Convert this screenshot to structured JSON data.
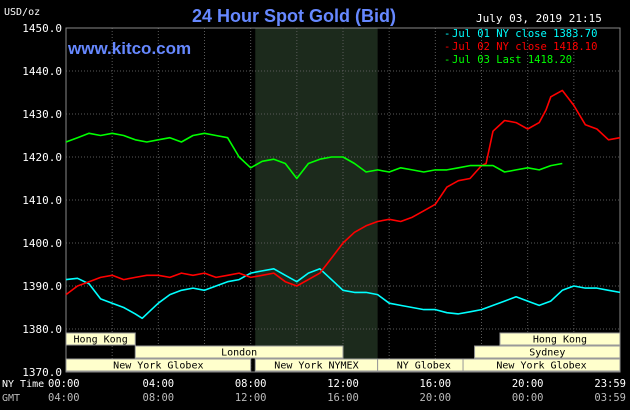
{
  "chart_data": {
    "type": "line",
    "title": "24 Hour Spot Gold (Bid)",
    "brand": "www.kitco.com",
    "timestamp": "July 03, 2019 21:15",
    "ylabel": "USD/oz",
    "ylim": [
      1370,
      1450
    ],
    "yticks": [
      "1450.0",
      "1440.0",
      "1430.0",
      "1420.0",
      "1410.0",
      "1400.0",
      "1390.0",
      "1380.0",
      "1370.0"
    ],
    "xlim": [
      0,
      24
    ],
    "grid": true,
    "legend_position": "top-right",
    "x_rows": [
      {
        "label": "NY Time",
        "ticks": [
          "00:00",
          "04:00",
          "08:00",
          "12:00",
          "16:00",
          "20:00",
          "23:59"
        ]
      },
      {
        "label": "GMT",
        "ticks": [
          "04:00",
          "08:00",
          "12:00",
          "16:00",
          "20:00",
          "00:00",
          "03:59"
        ]
      }
    ],
    "series": [
      {
        "name": "Jul 01 NY close 1383.70",
        "color": "#00ffff",
        "x": [
          0,
          0.5,
          1,
          1.5,
          2,
          2.5,
          3,
          3.3,
          3.6,
          4,
          4.5,
          5,
          5.5,
          6,
          6.5,
          7,
          7.5,
          8,
          8.5,
          9,
          9.5,
          10,
          10.5,
          11,
          11.5,
          12,
          12.5,
          13,
          13.5,
          14,
          14.5,
          15,
          15.5,
          16,
          16.5,
          17,
          17.5,
          18,
          18.5,
          19,
          19.5,
          20,
          20.5,
          21,
          21.5,
          22,
          22.5,
          23,
          23.5,
          24
        ],
        "y": [
          1391.5,
          1391.8,
          1390.5,
          1387.0,
          1386.0,
          1385.0,
          1383.5,
          1382.5,
          1384.0,
          1386.0,
          1388.0,
          1389.0,
          1389.5,
          1389.0,
          1390.0,
          1391.0,
          1391.5,
          1393.0,
          1393.5,
          1394.0,
          1392.5,
          1391.0,
          1393.0,
          1394.0,
          1391.5,
          1389.0,
          1388.5,
          1388.5,
          1388.0,
          1386.0,
          1385.5,
          1385.0,
          1384.5,
          1384.5,
          1383.8,
          1383.5,
          1384.0,
          1384.5,
          1385.5,
          1386.5,
          1387.5,
          1386.5,
          1385.5,
          1386.5,
          1389.0,
          1390.0,
          1389.5,
          1389.5,
          1389.0,
          1388.5
        ]
      },
      {
        "name": "Jul 02 NY close 1418.10",
        "color": "#ff0000",
        "x": [
          0,
          0.5,
          1,
          1.5,
          2,
          2.5,
          3,
          3.5,
          4,
          4.5,
          5,
          5.5,
          6,
          6.5,
          7,
          7.5,
          8,
          8.5,
          9,
          9.5,
          10,
          10.5,
          11,
          11.5,
          12,
          12.5,
          13,
          13.5,
          14,
          14.5,
          15,
          15.5,
          16,
          16.5,
          17,
          17.5,
          18,
          18.2,
          18.5,
          19,
          19.5,
          20,
          20.5,
          20.8,
          21,
          21.5,
          22,
          22.5,
          23,
          23.5,
          24
        ],
        "y": [
          1388.0,
          1390.0,
          1391.0,
          1392.0,
          1392.5,
          1391.5,
          1392.0,
          1392.5,
          1392.5,
          1392.0,
          1393.0,
          1392.5,
          1393.0,
          1392.0,
          1392.5,
          1393.0,
          1392.0,
          1392.5,
          1393.0,
          1391.0,
          1390.0,
          1391.5,
          1393.0,
          1396.5,
          1400.0,
          1402.5,
          1404.0,
          1405.0,
          1405.5,
          1405.0,
          1406.0,
          1407.5,
          1409.0,
          1413.0,
          1414.5,
          1415.0,
          1418.0,
          1418.5,
          1426.0,
          1428.5,
          1428.0,
          1426.5,
          1428.0,
          1431.0,
          1434.0,
          1435.5,
          1432.0,
          1427.5,
          1426.5,
          1424.0,
          1424.5
        ]
      },
      {
        "name": "Jul 03 Last 1418.20",
        "color": "#00ff00",
        "x": [
          0,
          0.5,
          1,
          1.5,
          2,
          2.5,
          3,
          3.5,
          4,
          4.5,
          5,
          5.5,
          6,
          6.5,
          7,
          7.5,
          8,
          8.5,
          9,
          9.5,
          10,
          10.5,
          11,
          11.5,
          12,
          12.5,
          13,
          13.5,
          14,
          14.5,
          15,
          15.5,
          16,
          16.5,
          17,
          17.5,
          18,
          18.5,
          19,
          19.5,
          20,
          20.5,
          21,
          21.5
        ],
        "y": [
          1423.5,
          1424.5,
          1425.5,
          1425.0,
          1425.5,
          1425.0,
          1424.0,
          1423.5,
          1424.0,
          1424.5,
          1423.5,
          1425.0,
          1425.5,
          1425.0,
          1424.5,
          1420.0,
          1417.5,
          1419.0,
          1419.5,
          1418.5,
          1415.0,
          1418.5,
          1419.5,
          1420.0,
          1420.0,
          1418.5,
          1416.5,
          1417.0,
          1416.5,
          1417.5,
          1417.0,
          1416.5,
          1417.0,
          1417.0,
          1417.5,
          1418.0,
          1418.0,
          1418.0,
          1416.5,
          1417.0,
          1417.5,
          1417.0,
          1418.0,
          1418.5
        ]
      }
    ],
    "sessions": [
      {
        "label": "Hong Kong",
        "row": 0,
        "start": 0,
        "end": 3
      },
      {
        "label": "Hong Kong",
        "row": 0,
        "start": 18.8,
        "end": 24
      },
      {
        "label": "London",
        "row": 1,
        "start": 3,
        "end": 12
      },
      {
        "label": "Sydney",
        "row": 1,
        "start": 17.7,
        "end": 24
      },
      {
        "label": "New York Globex",
        "row": 2,
        "start": 0,
        "end": 8
      },
      {
        "label": "New York NYMEX",
        "row": 2,
        "start": 8.2,
        "end": 13.5
      },
      {
        "label": "NY Globex",
        "row": 2,
        "start": 13.5,
        "end": 17.5
      },
      {
        "label": "New York Globex",
        "row": 2,
        "start": 17.2,
        "end": 24
      }
    ],
    "session_label_sydney_note": "",
    "shaded_session": [
      8.2,
      13.5
    ],
    "colors": {
      "background": "#000000",
      "grid": "#5a5a5a",
      "axis_text": "#ffffff",
      "title": "#6688ff",
      "brand": "#6688ff",
      "session_fill": "#ffffcc",
      "session_text": "#000000",
      "shaded": "#1c2a1c"
    }
  }
}
